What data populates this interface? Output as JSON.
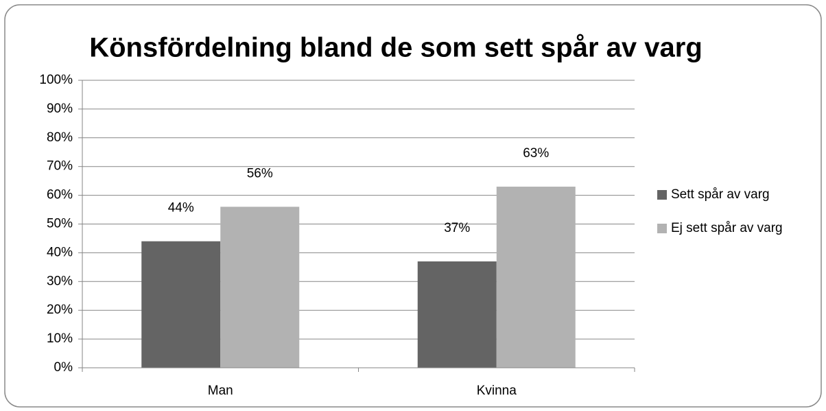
{
  "chart_data": {
    "type": "bar",
    "title": "Könsfördelning bland de som sett spår av varg",
    "categories": [
      "Man",
      "Kvinna"
    ],
    "series": [
      {
        "name": "Sett spår av varg",
        "color": "#646464",
        "values": [
          44,
          37
        ],
        "value_labels": [
          "44%",
          "37%"
        ]
      },
      {
        "name": "Ej sett spår av varg",
        "color": "#b2b2b2",
        "values": [
          56,
          63
        ],
        "value_labels": [
          "56%",
          "63%"
        ]
      }
    ],
    "ylim": [
      0,
      100
    ],
    "yticks": [
      {
        "value": 0,
        "label": "0%"
      },
      {
        "value": 10,
        "label": "10%"
      },
      {
        "value": 20,
        "label": "20%"
      },
      {
        "value": 30,
        "label": "30%"
      },
      {
        "value": 40,
        "label": "40%"
      },
      {
        "value": 50,
        "label": "50%"
      },
      {
        "value": 60,
        "label": "60%"
      },
      {
        "value": 70,
        "label": "70%"
      },
      {
        "value": 80,
        "label": "80%"
      },
      {
        "value": 90,
        "label": "90%"
      },
      {
        "value": 100,
        "label": "100%"
      }
    ],
    "grid": true,
    "legend": "right"
  }
}
